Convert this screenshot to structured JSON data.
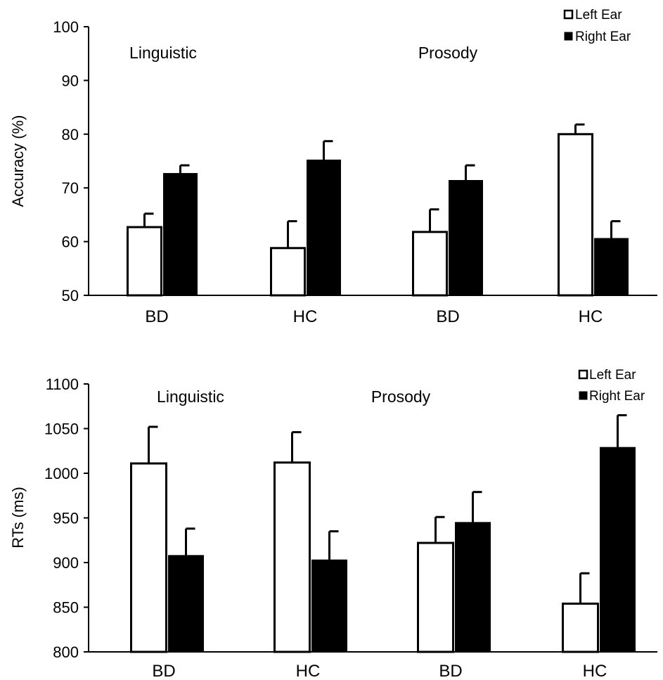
{
  "chart_data": [
    {
      "type": "bar",
      "ylabel": "Accuracy (%)",
      "ylim": [
        50,
        100
      ],
      "yticks": [
        50,
        60,
        70,
        80,
        90,
        100
      ],
      "categories": [
        "BD",
        "HC",
        "BD",
        "HC"
      ],
      "group_titles": [
        "Linguistic",
        "Prosody"
      ],
      "series": [
        {
          "name": "Left Ear",
          "color": "#ffffff",
          "values": [
            62.7,
            58.8,
            61.8,
            80.0
          ],
          "errors": [
            2.5,
            5.0,
            4.2,
            1.8
          ]
        },
        {
          "name": "Right Ear",
          "color": "#000000",
          "values": [
            72.7,
            75.2,
            71.4,
            60.6
          ],
          "errors": [
            1.5,
            3.5,
            2.8,
            3.2
          ]
        }
      ],
      "legend_position": "top-right"
    },
    {
      "type": "bar",
      "ylabel": "RTs (ms)",
      "ylim": [
        800,
        1100
      ],
      "yticks": [
        800,
        850,
        900,
        950,
        1000,
        1050,
        1100
      ],
      "categories": [
        "BD",
        "HC",
        "BD",
        "HC"
      ],
      "group_titles": [
        "Linguistic",
        "Prosody"
      ],
      "series": [
        {
          "name": "Left Ear",
          "color": "#ffffff",
          "values": [
            1011,
            1012,
            922,
            854
          ],
          "errors": [
            41,
            34,
            29,
            34
          ]
        },
        {
          "name": "Right Ear",
          "color": "#000000",
          "values": [
            908,
            903,
            945,
            1029
          ],
          "errors": [
            30,
            32,
            34,
            36
          ]
        }
      ],
      "legend_position": "top-right"
    }
  ]
}
